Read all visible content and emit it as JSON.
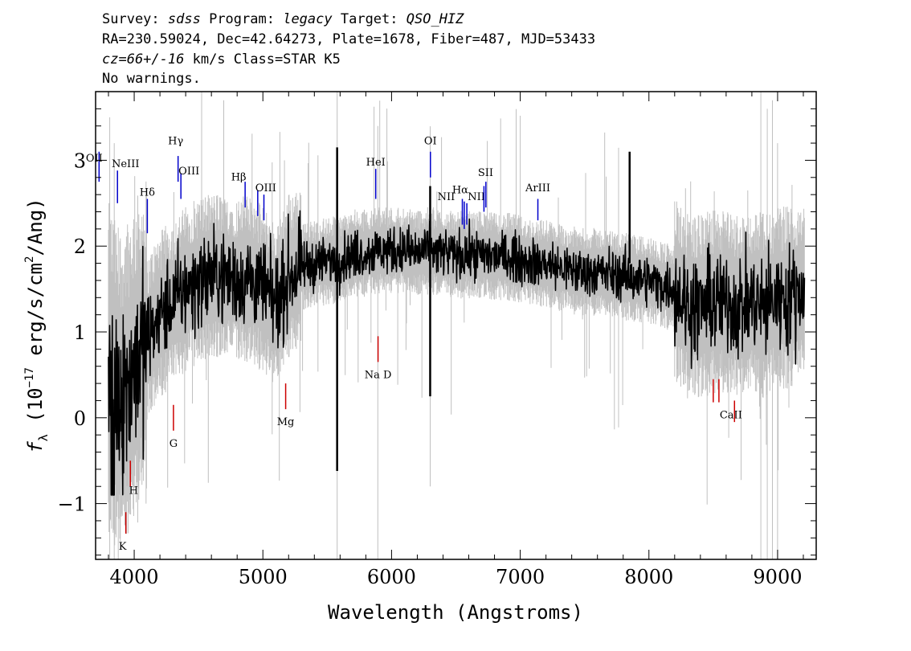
{
  "header": {
    "line1": {
      "survey_label": "Survey: ",
      "survey_value": "sdss",
      "program_label": " Program: ",
      "program_value": "legacy",
      "target_label": " Target: ",
      "target_value": "QSO_HIZ"
    },
    "line2": "RA=230.59024, Dec=42.64273, Plate=1678, Fiber=487, MJD=53433",
    "line3": {
      "cz_value": "cz=66+/-16",
      "rest": " km/s Class=STAR K5"
    },
    "line4": "No warnings."
  },
  "chart_data": {
    "type": "line",
    "xlabel": "Wavelength (Angstroms)",
    "ylabel": "f_λ (10^-17 erg/s/cm^2/Ang)",
    "ylabel_parts": {
      "f": "f",
      "lambda_sub": "λ",
      "open": " (10",
      "exp1": "−17",
      "mid": " erg/s/cm",
      "exp2": "2",
      "close": "/Ang)"
    },
    "xlim": [
      3700,
      9300
    ],
    "ylim": [
      -1.65,
      3.8
    ],
    "x_ticks": [
      4000,
      5000,
      6000,
      7000,
      8000,
      9000
    ],
    "x_tick_labels": [
      "4000",
      "5000",
      "6000",
      "7000",
      "8000",
      "9000"
    ],
    "y_ticks": [
      -1,
      0,
      1,
      2,
      3
    ],
    "y_tick_labels": [
      "−1",
      "0",
      "1",
      "2",
      "3"
    ],
    "series": [
      {
        "role": "flux",
        "color": "#000000",
        "x": [
          3800,
          3850,
          3900,
          3950,
          4000,
          4100,
          4200,
          4300,
          4400,
          4500,
          4600,
          4700,
          4800,
          4900,
          5000,
          5100,
          5200,
          5300,
          5400,
          5500,
          5600,
          5700,
          5800,
          5900,
          6000,
          6100,
          6200,
          6300,
          6400,
          6500,
          6600,
          6700,
          6800,
          6900,
          7000,
          7100,
          7200,
          7300,
          7400,
          7500,
          7600,
          7700,
          7800,
          7900,
          8000,
          8100,
          8200,
          8300,
          8400,
          8500,
          8600,
          8700,
          8800,
          8900,
          9000,
          9100,
          9200
        ],
        "values": [
          0.6,
          0.4,
          0.3,
          0.4,
          0.6,
          0.9,
          1.2,
          1.35,
          1.5,
          1.6,
          1.65,
          1.65,
          1.6,
          1.62,
          1.5,
          1.3,
          1.65,
          1.75,
          1.8,
          1.82,
          1.85,
          1.9,
          1.92,
          1.95,
          1.95,
          1.95,
          1.92,
          1.95,
          1.92,
          1.9,
          1.9,
          1.9,
          1.88,
          1.88,
          1.85,
          1.8,
          1.8,
          1.75,
          1.72,
          1.7,
          1.7,
          1.68,
          1.65,
          1.62,
          1.6,
          1.55,
          1.5,
          1.3,
          1.3,
          1.35,
          1.35,
          1.3,
          1.35,
          1.3,
          1.4,
          1.4,
          1.5
        ]
      },
      {
        "role": "error",
        "color": "#c0c0c0"
      }
    ],
    "emission_lines": [
      {
        "name": "[OII]",
        "label_shown": "OII",
        "wavelength": 3727,
        "color": "#0000cc"
      },
      {
        "name": "NeIII",
        "label_shown": "NeIII",
        "wavelength": 3870,
        "color": "#0000cc"
      },
      {
        "name": "Hδ",
        "label_shown": "Hδ",
        "wavelength": 4102,
        "color": "#0000cc"
      },
      {
        "name": "Hγ",
        "label_shown": "Hγ",
        "wavelength": 4341,
        "color": "#0000cc"
      },
      {
        "name": "OIII",
        "label_shown": "OIII",
        "wavelength": 4363,
        "color": "#0000cc"
      },
      {
        "name": "Hβ",
        "label_shown": "Hβ",
        "wavelength": 4862,
        "color": "#0000cc"
      },
      {
        "name": "OIII",
        "label_shown": "OIII",
        "wavelength": 4960,
        "color": "#0000cc"
      },
      {
        "name": "OIII b",
        "label_shown": "",
        "wavelength": 5008,
        "color": "#0000cc"
      },
      {
        "name": "HeI",
        "label_shown": "HeI",
        "wavelength": 5877,
        "color": "#0000cc"
      },
      {
        "name": "OI",
        "label_shown": "OI",
        "wavelength": 6302,
        "color": "#0000cc"
      },
      {
        "name": "NII",
        "label_shown": "NII",
        "wavelength": 6550,
        "color": "#0000cc"
      },
      {
        "name": "Hα",
        "label_shown": "Hα",
        "wavelength": 6565,
        "color": "#0000cc"
      },
      {
        "name": "NII",
        "label_shown": "NII",
        "wavelength": 6585,
        "color": "#0000cc"
      },
      {
        "name": "SII",
        "label_shown": "SII",
        "wavelength": 6718,
        "color": "#0000cc"
      },
      {
        "name": "SII b",
        "label_shown": "",
        "wavelength": 6733,
        "color": "#0000cc"
      },
      {
        "name": "ArIII",
        "label_shown": "ArIII",
        "wavelength": 7137,
        "color": "#0000cc"
      }
    ],
    "absorption_lines": [
      {
        "name": "K",
        "label_shown": "K",
        "wavelength": 3935,
        "color": "#cc0000"
      },
      {
        "name": "H",
        "label_shown": "H",
        "wavelength": 3970,
        "color": "#cc0000"
      },
      {
        "name": "G",
        "label_shown": "G",
        "wavelength": 4305,
        "color": "#cc0000"
      },
      {
        "name": "Mg",
        "label_shown": "Mg",
        "wavelength": 5177,
        "color": "#cc0000"
      },
      {
        "name": "Na D",
        "label_shown": "Na D",
        "wavelength": 5895,
        "color": "#cc0000"
      },
      {
        "name": "CaII",
        "label_shown": "CaII",
        "wavelength": 8500,
        "color": "#cc0000"
      },
      {
        "name": "CaII b",
        "label_shown": "",
        "wavelength": 8544,
        "color": "#cc0000"
      },
      {
        "name": "CaII c",
        "label_shown": "",
        "wavelength": 8665,
        "color": "#cc0000"
      }
    ]
  }
}
